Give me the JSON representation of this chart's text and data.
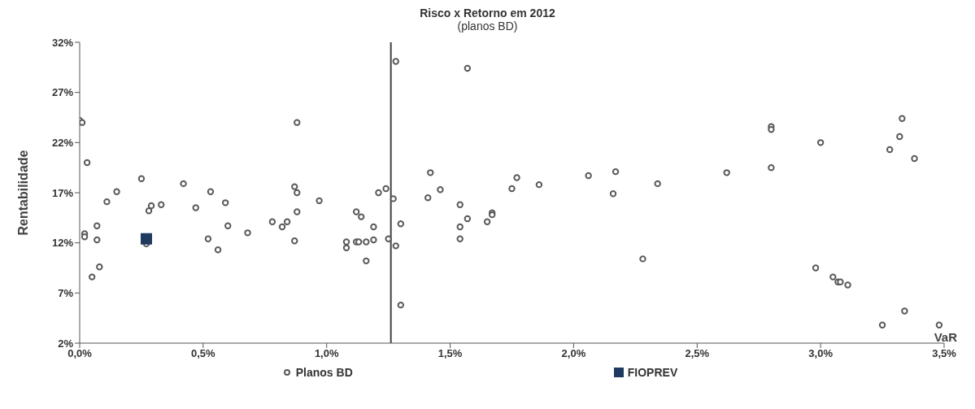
{
  "chart_data": {
    "type": "scatter",
    "title": "Risco x Retorno em 2012",
    "subtitle": "(planos BD)",
    "xlabel": "VaR",
    "ylabel": "Rentabilidade",
    "xlim": [
      0,
      3.5
    ],
    "xticks": [
      {
        "value": 0,
        "label": "0,0%"
      },
      {
        "value": 0.5,
        "label": "0,5%"
      },
      {
        "value": 1,
        "label": "1,0%"
      },
      {
        "value": 1.5,
        "label": "1,5%"
      },
      {
        "value": 2,
        "label": "2,0%"
      },
      {
        "value": 2.5,
        "label": "2,5%"
      },
      {
        "value": 3,
        "label": "3,0%"
      },
      {
        "value": 3.5,
        "label": "3,5%"
      }
    ],
    "ylim": [
      2,
      32
    ],
    "yticks": [
      {
        "value": 2,
        "label": "2%"
      },
      {
        "value": 7,
        "label": "7%"
      },
      {
        "value": 12,
        "label": "12%"
      },
      {
        "value": 17,
        "label": "17%"
      },
      {
        "value": 22,
        "label": "22%"
      },
      {
        "value": 27,
        "label": "27%"
      },
      {
        "value": 32,
        "label": "32%"
      }
    ],
    "grid": false,
    "legend": "bottom",
    "ref_lines": [
      {
        "axis": "x",
        "value": 1.26,
        "color": "#404040"
      }
    ],
    "series": [
      {
        "name": "Planos BD",
        "color": "#5a5a5a",
        "marker": "circle",
        "x": [
          0.0,
          0.01,
          0.03,
          0.02,
          0.02,
          0.07,
          0.07,
          0.08,
          0.05,
          0.11,
          0.15,
          0.25,
          0.28,
          0.29,
          0.33,
          0.27,
          0.42,
          0.47,
          0.53,
          0.52,
          0.56,
          0.59,
          0.6,
          0.68,
          0.78,
          0.82,
          0.84,
          0.87,
          0.88,
          0.88,
          0.88,
          0.87,
          0.97,
          1.08,
          1.08,
          1.12,
          1.13,
          1.16,
          1.12,
          1.14,
          1.16,
          1.19,
          1.19,
          1.21,
          1.24,
          1.27,
          1.25,
          1.3,
          1.28,
          1.3,
          1.28,
          1.57,
          1.41,
          1.42,
          1.46,
          1.54,
          1.54,
          1.54,
          1.57,
          1.65,
          1.67,
          1.67,
          1.75,
          1.77,
          1.86,
          2.06,
          2.17,
          2.16,
          2.28,
          2.34,
          2.62,
          2.8,
          2.8,
          2.8,
          3.0,
          2.98,
          3.05,
          3.07,
          3.08,
          3.11,
          3.28,
          3.32,
          3.33,
          3.38,
          3.34,
          3.25,
          3.48
        ],
        "values": [
          24.2,
          24.0,
          20.0,
          12.9,
          12.6,
          13.7,
          12.3,
          9.6,
          8.6,
          16.1,
          17.1,
          18.4,
          15.2,
          15.7,
          15.8,
          11.9,
          17.9,
          15.5,
          17.1,
          12.4,
          11.3,
          16.0,
          13.7,
          13.0,
          14.1,
          13.6,
          14.1,
          17.6,
          17.0,
          24.0,
          15.1,
          12.2,
          16.2,
          12.1,
          11.5,
          12.1,
          12.1,
          12.1,
          15.1,
          14.6,
          10.2,
          13.6,
          12.3,
          17.0,
          17.4,
          16.4,
          12.4,
          13.9,
          11.7,
          5.8,
          30.1,
          29.4,
          16.5,
          19.0,
          17.3,
          15.8,
          13.6,
          12.4,
          14.4,
          14.1,
          15.0,
          14.8,
          17.4,
          18.5,
          17.8,
          18.7,
          19.1,
          16.9,
          10.4,
          17.9,
          19.0,
          23.6,
          23.3,
          19.5,
          22.0,
          9.5,
          8.6,
          8.1,
          8.1,
          7.8,
          21.3,
          22.6,
          24.4,
          20.4,
          5.2,
          3.8,
          3.8
        ]
      },
      {
        "name": "FIOPREV",
        "color": "#1f3a5f",
        "marker": "square",
        "x": [
          0.27
        ],
        "values": [
          12.4
        ]
      }
    ]
  }
}
